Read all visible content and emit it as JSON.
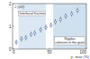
{
  "chart_data": {
    "type": "scatter",
    "ylabel": "J (eV)",
    "xlabel": "p_max (%)",
    "x": [
      5,
      12,
      18,
      25,
      30,
      38,
      45,
      52,
      58,
      65,
      72,
      80,
      88
    ],
    "values": [
      0.3,
      0.45,
      0.5,
      0.65,
      0.7,
      0.85,
      0.95,
      1.05,
      1.2,
      1.3,
      1.45,
      1.55,
      1.7
    ],
    "errors": [
      0.12,
      0.12,
      0.12,
      0.12,
      0.12,
      0.12,
      0.12,
      0.12,
      0.12,
      0.12,
      0.12,
      0.12,
      0.12
    ],
    "color": "#3a5f9a",
    "marker": "circle",
    "xlim": [
      0,
      100
    ],
    "xticks": [
      0,
      50,
      100
    ],
    "ylim": [
      0,
      2
    ],
    "yticks": [
      0,
      1,
      2
    ],
    "shaded_ranges": [
      [
        8,
        45
      ],
      [
        55,
        100
      ]
    ],
    "annotations": [
      [
        "Interfacial fraction"
      ],
      [
        "Ripples",
        "coherent in the grain"
      ]
    ]
  }
}
